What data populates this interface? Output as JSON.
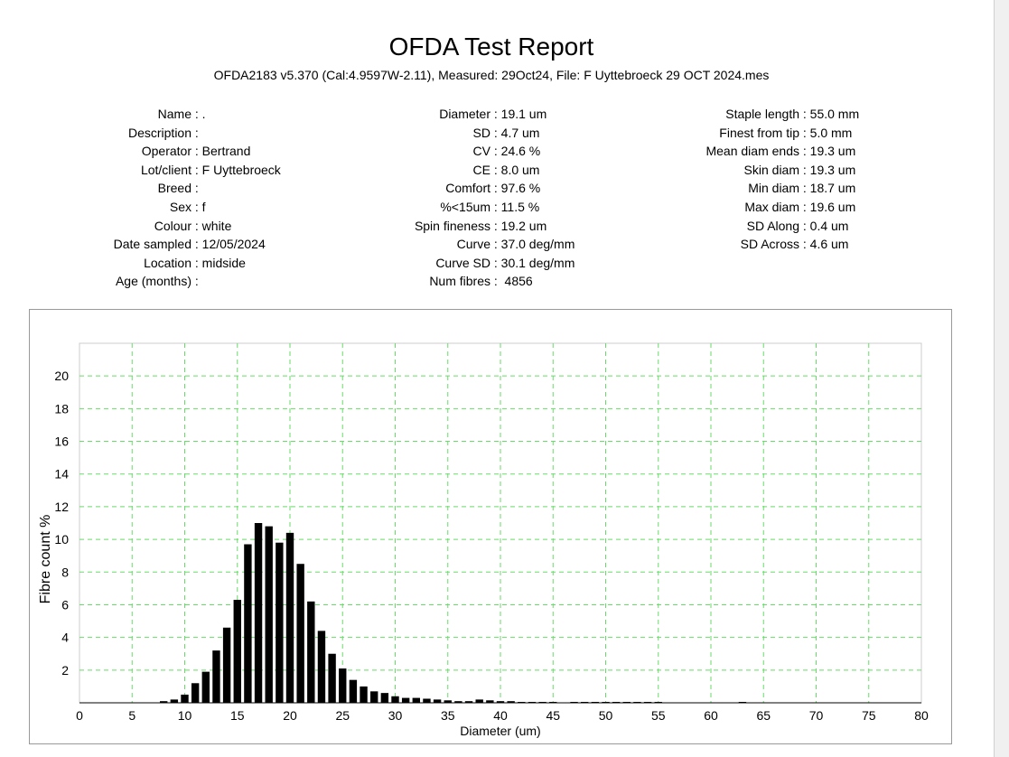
{
  "report": {
    "title": "OFDA Test Report",
    "subtitle": "OFDA2183 v5.370 (Cal:4.9597W-2.11), Measured: 29Oct24, File: F Uyttebroeck 29 OCT 2024.mes"
  },
  "fields": {
    "col1": [
      {
        "label": "Name",
        "value": "."
      },
      {
        "label": "Description",
        "value": ""
      },
      {
        "label": "Operator",
        "value": "Bertrand"
      },
      {
        "label": "Lot/client",
        "value": "F Uyttebroeck"
      },
      {
        "label": "Breed",
        "value": ""
      },
      {
        "label": "Sex",
        "value": "f"
      },
      {
        "label": "Colour",
        "value": "white"
      },
      {
        "label": "Date sampled",
        "value": "12/05/2024"
      },
      {
        "label": "Location",
        "value": "midside"
      },
      {
        "label": "Age (months)",
        "value": ""
      }
    ],
    "col2": [
      {
        "label": "Diameter",
        "value": "19.1 um"
      },
      {
        "label": "SD",
        "value": "4.7 um"
      },
      {
        "label": "CV",
        "value": "24.6 %"
      },
      {
        "label": "CE",
        "value": "8.0 um"
      },
      {
        "label": "Comfort",
        "value": "97.6 %"
      },
      {
        "label": "%<15um",
        "value": "11.5 %"
      },
      {
        "label": "Spin fineness",
        "value": "19.2 um"
      },
      {
        "label": "Curve",
        "value": "37.0 deg/mm"
      },
      {
        "label": "Curve SD",
        "value": "30.1 deg/mm"
      },
      {
        "label": "Num fibres",
        "value": " 4856"
      }
    ],
    "col3": [
      {
        "label": "Staple length",
        "value": "55.0 mm"
      },
      {
        "label": "Finest from tip",
        "value": "5.0 mm"
      },
      {
        "label": "Mean diam ends",
        "value": "19.3 um"
      },
      {
        "label": "Skin diam",
        "value": "19.3 um"
      },
      {
        "label": "Min diam",
        "value": "18.7 um"
      },
      {
        "label": "Max diam",
        "value": "19.6 um"
      },
      {
        "label": "SD Along",
        "value": "0.4 um"
      },
      {
        "label": "SD Across",
        "value": "4.6 um"
      }
    ]
  },
  "chart_data": {
    "type": "bar",
    "xlabel": "Diameter (um)",
    "ylabel": "Fibre count %",
    "xlim": [
      0,
      80
    ],
    "ylim": [
      0,
      22
    ],
    "xticks": [
      0,
      5,
      10,
      15,
      20,
      25,
      30,
      35,
      40,
      45,
      50,
      55,
      60,
      65,
      70,
      75,
      80
    ],
    "yticks": [
      2,
      4,
      6,
      8,
      10,
      12,
      14,
      16,
      18,
      20
    ],
    "grid": true,
    "bar_color": "#000000",
    "grid_color": "#66dd66",
    "x": [
      8,
      9,
      10,
      11,
      12,
      13,
      14,
      15,
      16,
      17,
      18,
      19,
      20,
      21,
      22,
      23,
      24,
      25,
      26,
      27,
      28,
      29,
      30,
      31,
      32,
      33,
      34,
      35,
      36,
      37,
      38,
      39,
      40,
      41,
      42,
      43,
      44,
      45,
      46,
      47,
      48,
      49,
      50,
      51,
      52,
      53,
      54,
      55,
      56,
      57,
      58,
      59,
      60,
      61,
      62,
      63
    ],
    "values": [
      0.1,
      0.2,
      0.5,
      1.2,
      1.9,
      3.2,
      4.6,
      6.3,
      9.7,
      11.0,
      10.8,
      9.8,
      10.4,
      8.5,
      6.2,
      4.4,
      3.0,
      2.1,
      1.4,
      1.0,
      0.7,
      0.6,
      0.4,
      0.3,
      0.3,
      0.25,
      0.2,
      0.15,
      0.1,
      0.1,
      0.2,
      0.15,
      0.1,
      0.1,
      0.05,
      0.05,
      0.05,
      0.05,
      0,
      0.05,
      0.05,
      0.05,
      0.05,
      0.05,
      0.05,
      0.05,
      0.05,
      0.05,
      0,
      0,
      0,
      0,
      0,
      0,
      0,
      0.05
    ]
  }
}
